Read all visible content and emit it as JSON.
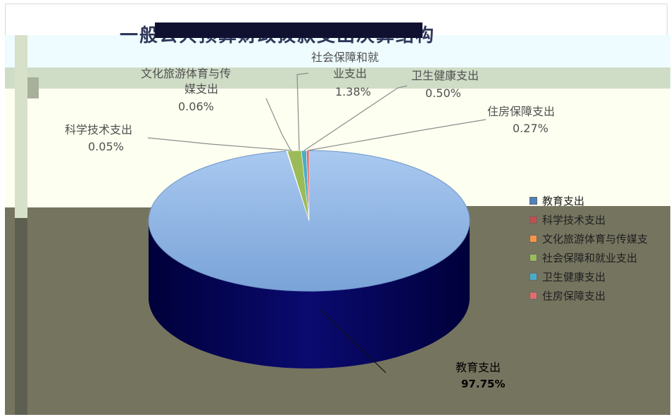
{
  "chart_data": {
    "type": "pie",
    "title": "一般公共预算财政拨款支出决算结构",
    "categories": [
      "教育支出",
      "科学技术支出",
      "文化旅游体育与传媒支出",
      "社会保障和就业支出",
      "卫生健康支出",
      "住房保障支出"
    ],
    "values": [
      97.75,
      0.05,
      0.06,
      1.38,
      0.5,
      0.27
    ],
    "value_labels": [
      "97.75%",
      "0.05%",
      "0.06%",
      "1.38%",
      "0.50%",
      "0.27%"
    ],
    "colors": [
      "#4f81bd",
      "#c0504d",
      "#f79646",
      "#9bbb59",
      "#4bacc6",
      "#e46c6c"
    ],
    "legend": {
      "placement": "right",
      "entries": [
        "教育支出",
        "科学技术支出",
        "文化旅游体育与传媒支",
        "社会保障和就业支出",
        "卫生健康支出",
        "住房保障支出"
      ]
    },
    "data_labels": {
      "edu_name": "教育支出",
      "sci_name": "科学技术支出",
      "cul_name_1": "文化旅游体育与传",
      "cul_name_2": "媒支出",
      "soc_name_1": "社会保障和就",
      "soc_name_2": "业支出",
      "hea_name": "卫生健康支出",
      "hou_name": "住房保障支出"
    }
  }
}
